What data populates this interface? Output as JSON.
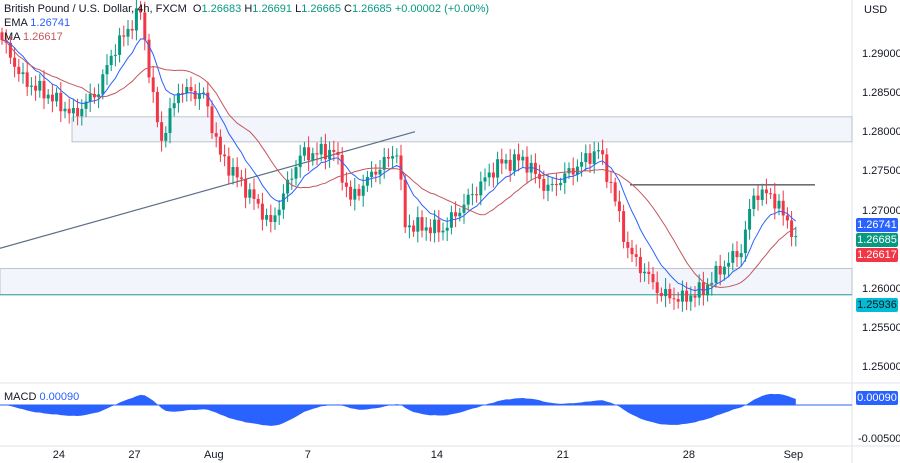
{
  "header": {
    "symbol": "British Pound / U.S. Dollar, 4h, FXCM",
    "o_label": "O",
    "o": "1.26683",
    "h_label": "H",
    "h": "1.26691",
    "l_label": "L",
    "l": "1.26665",
    "c_label": "C",
    "c": "1.26685",
    "change": "+0.00002 (+0.00%)"
  },
  "indicators": {
    "ema_label": "EMA",
    "ema": "1.26741",
    "ma_label": "MA",
    "ma": "1.26617",
    "macd_label": "MACD",
    "macd": "0.00090"
  },
  "currency": "USD",
  "price_axis": [
    "1.29000",
    "1.28500",
    "1.28000",
    "1.27500",
    "1.27000",
    "1.26000",
    "1.25500",
    "1.25000"
  ],
  "price_ticks": [
    1.29,
    1.285,
    1.28,
    1.275,
    1.27,
    1.26,
    1.255,
    1.25
  ],
  "macd_axis": [
    "-0.00500"
  ],
  "tags": {
    "ema": "1.26741",
    "close": "1.26685",
    "ma": "1.26617",
    "level": "1.25936",
    "macd": "0.00090"
  },
  "time_axis": [
    {
      "label": "24",
      "i": 14
    },
    {
      "label": "27",
      "i": 32
    },
    {
      "label": "Aug",
      "i": 50
    },
    {
      "label": "7",
      "i": 74
    },
    {
      "label": "14",
      "i": 104
    },
    {
      "label": "21",
      "i": 134
    },
    {
      "label": "28",
      "i": 164
    },
    {
      "label": "Sep",
      "i": 188
    }
  ],
  "colors": {
    "up": "#089981",
    "down": "#f23645",
    "ema": "#2962ff",
    "ma": "#c2575d",
    "macd": "#2962ff",
    "level": "#00bcd4"
  },
  "levels": {
    "zone_top": [
      1.2821,
      1.2789
    ],
    "zone_bottom": [
      1.2627,
      1.25936
    ],
    "resistance": 1.2734,
    "trendline": [
      1.2653,
      1.2802
    ]
  },
  "close_path": [
    [
      0,
      1.2919
    ],
    [
      5,
      1.2868
    ],
    [
      11,
      1.2849
    ],
    [
      17,
      1.2823
    ],
    [
      23,
      1.2855
    ],
    [
      26,
      1.29
    ],
    [
      33,
      1.2957
    ],
    [
      36,
      1.2842
    ],
    [
      38,
      1.2791
    ],
    [
      42,
      1.2855
    ],
    [
      48,
      1.2849
    ],
    [
      52,
      1.2772
    ],
    [
      60,
      1.2715
    ],
    [
      64,
      1.2683
    ],
    [
      71,
      1.2772
    ],
    [
      79,
      1.2778
    ],
    [
      83,
      1.2715
    ],
    [
      88,
      1.2747
    ],
    [
      94,
      1.2778
    ],
    [
      96,
      1.2683
    ],
    [
      105,
      1.2677
    ],
    [
      112,
      1.2722
    ],
    [
      118,
      1.276
    ],
    [
      124,
      1.2767
    ],
    [
      130,
      1.2728
    ],
    [
      136,
      1.2754
    ],
    [
      142,
      1.2779
    ],
    [
      145,
      1.2734
    ],
    [
      149,
      1.2651
    ],
    [
      157,
      1.2594
    ],
    [
      162,
      1.2588
    ],
    [
      167,
      1.26
    ],
    [
      171,
      1.2626
    ],
    [
      176,
      1.2651
    ],
    [
      179,
      1.2722
    ],
    [
      183,
      1.2722
    ],
    [
      186,
      1.2696
    ],
    [
      189,
      1.26685
    ]
  ]
}
